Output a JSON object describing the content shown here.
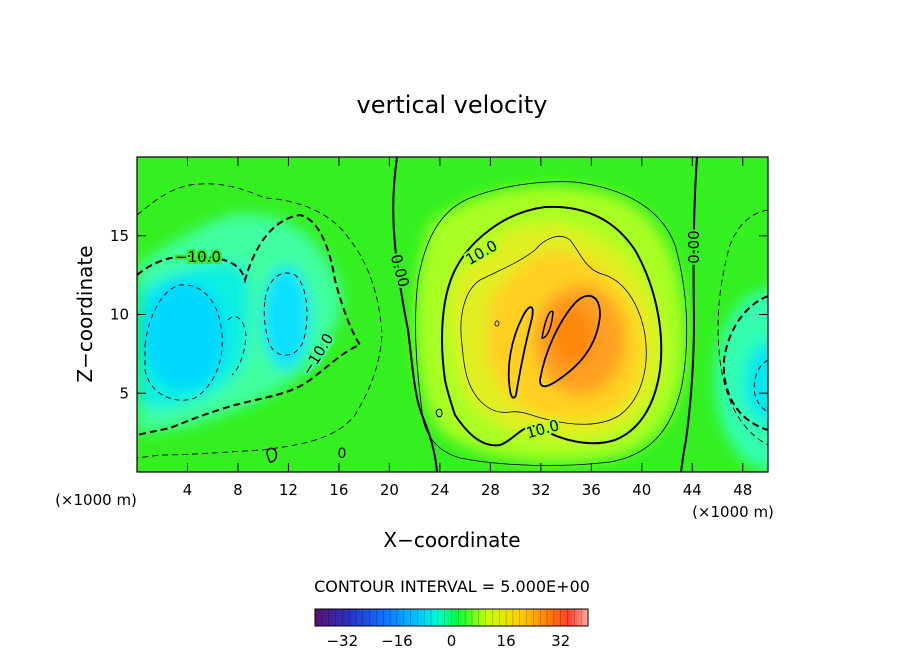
{
  "chart_data": {
    "type": "heatmap",
    "title": "vertical velocity",
    "xlabel": "X−coordinate",
    "ylabel": "Z−coordinate",
    "xunit_left": "(×1000 m)",
    "xunit_right": "(×1000 m)",
    "xlim": [
      0,
      50
    ],
    "ylim": [
      0,
      20
    ],
    "xticks": [
      4,
      8,
      12,
      16,
      20,
      24,
      28,
      32,
      36,
      40,
      44,
      48
    ],
    "yticks": [
      5,
      10,
      15
    ],
    "contour_interval_text": "CONTOUR INTERVAL = 5.000E+00",
    "contour_labels": [
      "−10.0",
      "0.00",
      "10.0",
      "0.00",
      "−10.0",
      "10.0",
      "0"
    ],
    "colorbar": {
      "range": [
        -40,
        40
      ],
      "ticks": [
        -32,
        -16,
        0,
        16,
        32
      ],
      "tick_labels": [
        "−32",
        "−16",
        "0",
        "16",
        "32"
      ],
      "colors": [
        "#5a1070",
        "#2a30c0",
        "#1070ff",
        "#00c8ff",
        "#00ffd0",
        "#00ff40",
        "#c8ff00",
        "#ffd000",
        "#ff8000",
        "#ff4030",
        "#ffb0a0"
      ]
    },
    "features": [
      {
        "name": "downdraft-west-1",
        "x": 4,
        "z": 10,
        "value": -18
      },
      {
        "name": "downdraft-west-2",
        "x": 11.5,
        "z": 10.5,
        "value": -16
      },
      {
        "name": "updraft-core",
        "x": 34,
        "z": 8.5,
        "value": 26
      },
      {
        "name": "downdraft-east",
        "x": 50,
        "z": 6.5,
        "value": -14
      }
    ]
  }
}
